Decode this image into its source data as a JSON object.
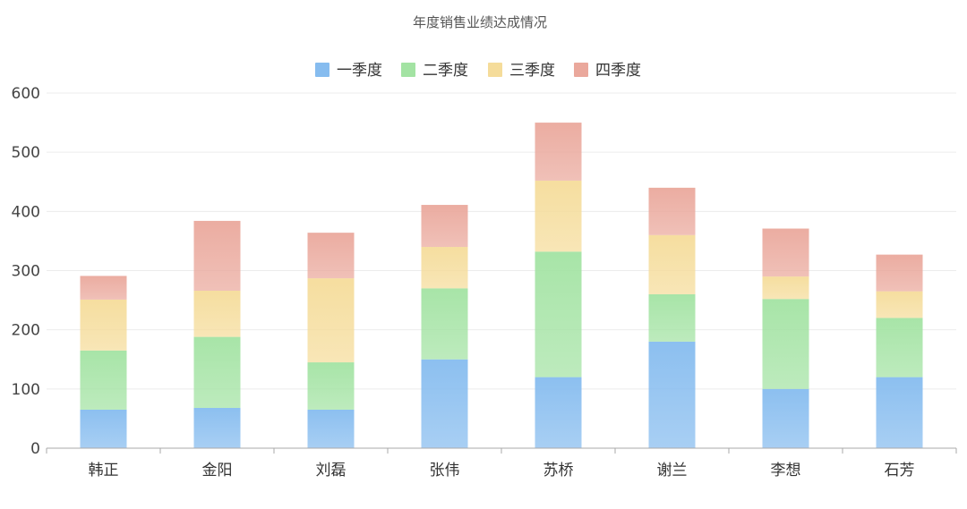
{
  "chart_data": {
    "type": "bar",
    "stacked": true,
    "title": "年度销售业绩达成情况",
    "categories": [
      "韩正",
      "金阳",
      "刘磊",
      "张伟",
      "苏桥",
      "谢兰",
      "李想",
      "石芳"
    ],
    "series": [
      {
        "name": "一季度",
        "color": "#86bcef",
        "values": [
          65,
          68,
          65,
          150,
          120,
          180,
          100,
          120
        ]
      },
      {
        "name": "二季度",
        "color": "#a3e3a3",
        "values": [
          100,
          120,
          80,
          120,
          212,
          80,
          152,
          100
        ]
      },
      {
        "name": "三季度",
        "color": "#f5dc9a",
        "values": [
          86,
          78,
          142,
          70,
          120,
          100,
          38,
          45
        ]
      },
      {
        "name": "四季度",
        "color": "#eaa89c",
        "values": [
          40,
          118,
          77,
          71,
          98,
          80,
          81,
          62
        ]
      }
    ],
    "yticks": [
      0,
      100,
      200,
      300,
      400,
      500,
      600
    ],
    "ylim": [
      0,
      600
    ],
    "legend_position": "top-center",
    "grid": true
  }
}
